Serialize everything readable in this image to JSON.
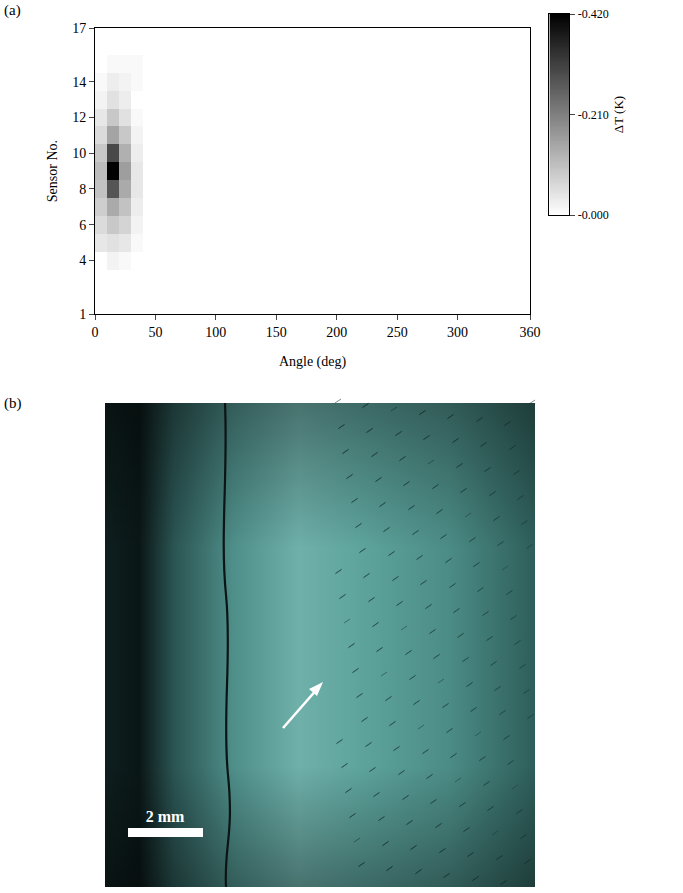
{
  "chart_data": {
    "type": "heatmap",
    "panel_label": "(a)",
    "x_label": "Angle (deg)",
    "y_label": "Sensor No.",
    "x": [
      5,
      15,
      25,
      35,
      45,
      55,
      65,
      75,
      85,
      95,
      105,
      115,
      125,
      135,
      145,
      155,
      165,
      175,
      185,
      195,
      205,
      215,
      225,
      235,
      245,
      255,
      265,
      275,
      285,
      295,
      305,
      315,
      325,
      335,
      345,
      355
    ],
    "y": [
      1,
      2,
      3,
      4,
      5,
      6,
      7,
      8,
      9,
      10,
      11,
      12,
      13,
      14,
      15,
      16,
      17
    ],
    "z": [
      [
        0,
        0,
        0,
        0,
        0,
        0,
        0,
        0,
        0,
        0,
        0,
        0,
        0,
        0,
        0,
        0,
        0,
        0,
        0,
        0,
        0,
        0,
        0,
        0,
        0,
        0,
        0,
        0,
        0,
        0,
        0,
        0,
        0,
        0,
        0,
        0
      ],
      [
        0,
        0,
        0,
        0,
        0,
        0,
        0,
        0,
        0,
        0,
        0,
        0,
        0,
        0,
        0,
        0,
        0,
        0,
        0,
        0,
        0,
        0,
        0,
        0,
        0,
        0,
        0,
        0,
        0,
        0,
        0,
        0,
        0,
        0,
        0,
        0
      ],
      [
        0,
        0,
        0,
        0,
        0,
        0,
        0,
        0,
        0,
        0,
        0,
        0,
        0,
        0,
        0,
        0,
        0,
        0,
        0,
        0,
        0,
        0,
        0,
        0,
        0,
        0,
        0,
        0,
        0,
        0,
        0,
        0,
        0,
        0,
        0,
        0
      ],
      [
        0,
        -0.02,
        -0.01,
        0,
        0,
        0,
        0,
        0,
        0,
        0,
        0,
        0,
        0,
        0,
        0,
        0,
        0,
        0,
        0,
        0,
        0,
        0,
        0,
        0,
        0,
        0,
        0,
        0,
        0,
        0,
        0,
        0,
        0,
        0,
        0,
        0
      ],
      [
        -0.04,
        -0.05,
        -0.04,
        -0.01,
        0,
        0,
        0,
        0,
        0,
        0,
        0,
        0,
        0,
        0,
        0,
        0,
        0,
        0,
        0,
        0,
        0,
        0,
        0,
        0,
        0,
        0,
        0,
        0,
        0,
        0,
        0,
        0,
        0,
        0,
        0,
        0
      ],
      [
        -0.06,
        -0.09,
        -0.07,
        -0.02,
        0,
        0,
        0,
        0,
        0,
        0,
        0,
        0,
        0,
        0,
        0,
        0,
        0,
        0,
        0,
        0,
        0,
        0,
        0,
        0,
        0,
        0,
        0,
        0,
        0,
        0,
        0,
        0,
        0,
        0,
        0,
        0
      ],
      [
        -0.08,
        -0.14,
        -0.1,
        -0.03,
        0,
        0,
        0,
        0,
        0,
        0,
        0,
        0,
        0,
        0,
        0,
        0,
        0,
        0,
        0,
        0,
        0,
        0,
        0,
        0,
        0,
        0,
        0,
        0,
        0,
        0,
        0,
        0,
        0,
        0,
        0,
        0
      ],
      [
        -0.1,
        -0.28,
        -0.14,
        -0.04,
        0,
        0,
        0,
        0,
        0,
        0,
        0,
        0,
        0,
        0,
        0,
        0,
        0,
        0,
        0,
        0,
        0,
        0,
        0,
        0,
        0,
        0,
        0,
        0,
        0,
        0,
        0,
        0,
        0,
        0,
        0,
        0
      ],
      [
        -0.11,
        -0.42,
        -0.16,
        -0.04,
        0,
        0,
        0,
        0,
        0,
        0,
        0,
        0,
        0,
        0,
        0,
        0,
        0,
        0,
        0,
        0,
        0,
        0,
        0,
        0,
        0,
        0,
        0,
        0,
        0,
        0,
        0,
        0,
        0,
        0,
        0,
        0
      ],
      [
        -0.09,
        -0.3,
        -0.13,
        -0.03,
        0,
        0,
        0,
        0,
        0,
        0,
        0,
        0,
        0,
        0,
        0,
        0,
        0,
        0,
        0,
        0,
        0,
        0,
        0,
        0,
        0,
        0,
        0,
        0,
        0,
        0,
        0,
        0,
        0,
        0,
        0,
        0
      ],
      [
        -0.06,
        -0.15,
        -0.09,
        -0.02,
        0,
        0,
        0,
        0,
        0,
        0,
        0,
        0,
        0,
        0,
        0,
        0,
        0,
        0,
        0,
        0,
        0,
        0,
        0,
        0,
        0,
        0,
        0,
        0,
        0,
        0,
        0,
        0,
        0,
        0,
        0,
        0
      ],
      [
        -0.04,
        -0.09,
        -0.05,
        -0.01,
        0,
        0,
        0,
        0,
        0,
        0,
        0,
        0,
        0,
        0,
        0,
        0,
        0,
        0,
        0,
        0,
        0,
        0,
        0,
        0,
        0,
        0,
        0,
        0,
        0,
        0,
        0,
        0,
        0,
        0,
        0,
        0
      ],
      [
        -0.02,
        -0.05,
        -0.03,
        0,
        0,
        0,
        0,
        0,
        0,
        0,
        0,
        0,
        0,
        0,
        0,
        0,
        0,
        0,
        0,
        0,
        0,
        0,
        0,
        0,
        0,
        0,
        0,
        0,
        0,
        0,
        0,
        0,
        0,
        0,
        0,
        0
      ],
      [
        -0.01,
        -0.03,
        -0.02,
        -0.01,
        0,
        0,
        0,
        0,
        0,
        0,
        0,
        0,
        0,
        0,
        0,
        0,
        0,
        0,
        0,
        0,
        0,
        0,
        0,
        0,
        0,
        0,
        0,
        0,
        0,
        0,
        0,
        0,
        0,
        0,
        0,
        0
      ],
      [
        0,
        -0.01,
        -0.01,
        -0.01,
        0,
        0,
        0,
        0,
        0,
        0,
        0,
        0,
        0,
        0,
        0,
        0,
        0,
        0,
        0,
        0,
        0,
        0,
        0,
        0,
        0,
        0,
        0,
        0,
        0,
        0,
        0,
        0,
        0,
        0,
        0,
        0
      ],
      [
        0,
        0,
        0,
        0,
        0,
        0,
        0,
        0,
        0,
        0,
        0,
        0,
        0,
        0,
        0,
        0,
        0,
        0,
        0,
        0,
        0,
        0,
        0,
        0,
        0,
        0,
        0,
        0,
        0,
        0,
        0,
        0,
        0,
        0,
        0,
        0
      ],
      [
        0,
        0,
        0,
        0,
        0,
        0,
        0,
        0,
        0,
        0,
        0,
        0,
        0,
        0,
        0,
        0,
        0,
        0,
        0,
        0,
        0,
        0,
        0,
        0,
        0,
        0,
        0,
        0,
        0,
        0,
        0,
        0,
        0,
        0,
        0,
        0
      ]
    ],
    "xlim": [
      0,
      360
    ],
    "xticks": [
      0,
      50,
      100,
      150,
      200,
      250,
      300,
      360
    ],
    "ylim": [
      1,
      17
    ],
    "yticks": [
      1,
      4,
      6,
      8,
      10,
      12,
      14,
      17
    ],
    "colorbar": {
      "title": "ΔT (K)",
      "range": [
        -0.42,
        0
      ],
      "ticks": [
        {
          "value": -0.42,
          "label": "-0.420"
        },
        {
          "value": -0.21,
          "label": "-0.210"
        },
        {
          "value": 0,
          "label": "-0.000"
        }
      ]
    }
  },
  "photo": {
    "panel_label": "(b)",
    "scale_bar": "2 mm"
  }
}
